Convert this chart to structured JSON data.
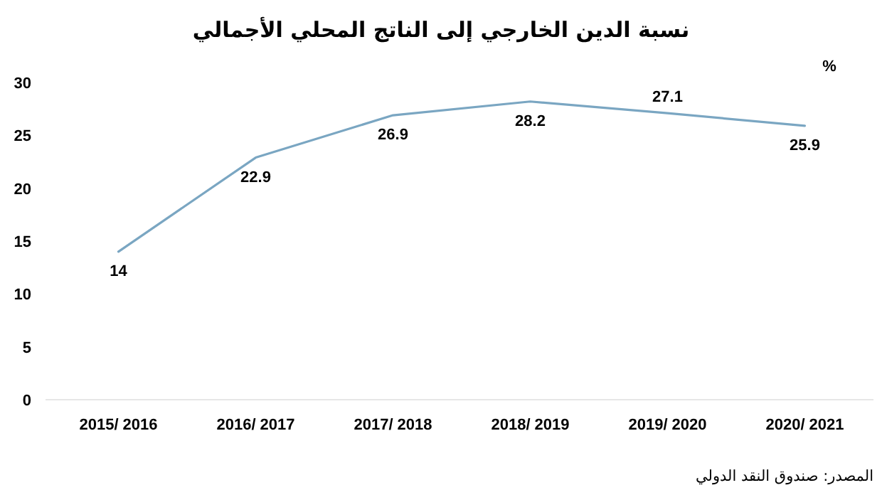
{
  "chart_data": {
    "type": "line",
    "title": "نسبة الدين الخارجي إلى الناتج المحلي الأجمالي",
    "ylabel": "%",
    "categories": [
      "2015/ 2016",
      "2016/ 2017",
      "2017/ 2018",
      "2018/ 2019",
      "2019/ 2020",
      "2020/ 2021"
    ],
    "series": [
      {
        "color": "#7aa6c2",
        "values": [
          14,
          22.9,
          26.9,
          28.2,
          27.1,
          25.9
        ]
      }
    ],
    "ylim": [
      0,
      30
    ],
    "yticks": [
      0,
      5,
      10,
      15,
      20,
      25,
      30
    ],
    "grid": false,
    "marker": "none",
    "line_style": "solid",
    "data_labels": true,
    "annotations": [
      "المصدر: صندوق النقد الدولي"
    ]
  }
}
